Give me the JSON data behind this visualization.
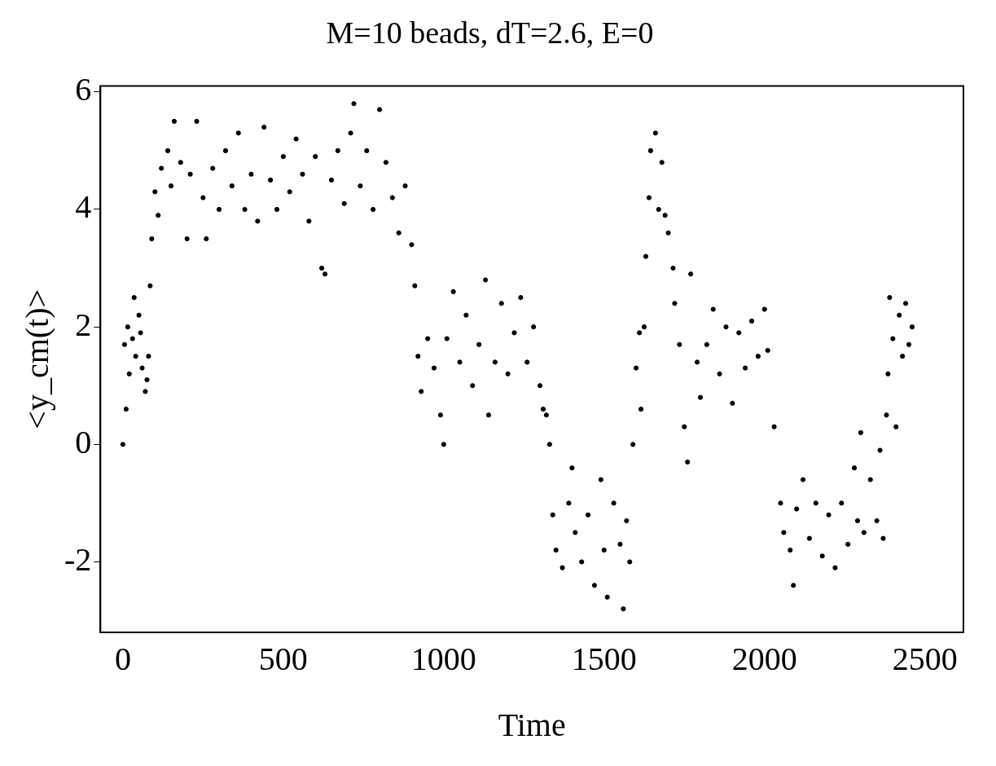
{
  "chart_data": {
    "type": "scatter",
    "title": "M=10 beads, dT=2.6, E=0",
    "xlabel": "Time",
    "ylabel": "<y_cm(t)>",
    "xlim": [
      -70,
      2620
    ],
    "xticks": [
      0,
      500,
      1000,
      1500,
      2000,
      2500
    ],
    "ylim": [
      -3.2,
      6.1
    ],
    "yticks": [
      -2,
      0,
      2,
      4,
      6
    ],
    "grid": false,
    "legend": false,
    "marker": "circle",
    "series": [
      {
        "color": "#000000",
        "x": [
          0,
          5,
          10,
          15,
          20,
          30,
          35,
          40,
          50,
          55,
          60,
          70,
          75,
          80,
          85,
          90,
          100,
          110,
          120,
          140,
          150,
          160,
          180,
          200,
          210,
          230,
          250,
          260,
          280,
          300,
          320,
          340,
          360,
          380,
          400,
          420,
          440,
          460,
          480,
          500,
          520,
          540,
          560,
          580,
          600,
          620,
          630,
          650,
          670,
          690,
          710,
          720,
          740,
          760,
          780,
          800,
          820,
          840,
          860,
          880,
          900,
          910,
          920,
          930,
          950,
          970,
          990,
          1000,
          1010,
          1030,
          1050,
          1070,
          1090,
          1110,
          1130,
          1140,
          1160,
          1180,
          1200,
          1220,
          1240,
          1260,
          1280,
          1300,
          1310,
          1320,
          1330,
          1340,
          1350,
          1370,
          1390,
          1400,
          1410,
          1430,
          1450,
          1470,
          1490,
          1500,
          1510,
          1530,
          1550,
          1560,
          1570,
          1580,
          1590,
          1600,
          1610,
          1615,
          1625,
          1630,
          1640,
          1645,
          1660,
          1670,
          1680,
          1690,
          1700,
          1715,
          1720,
          1735,
          1750,
          1760,
          1770,
          1790,
          1800,
          1820,
          1840,
          1860,
          1880,
          1900,
          1920,
          1940,
          1960,
          1980,
          2000,
          2010,
          2030,
          2050,
          2060,
          2080,
          2090,
          2100,
          2120,
          2140,
          2160,
          2180,
          2200,
          2220,
          2240,
          2260,
          2280,
          2290,
          2300,
          2310,
          2330,
          2350,
          2360,
          2370,
          2380,
          2385,
          2390,
          2400,
          2410,
          2420,
          2430,
          2440,
          2450,
          2460
        ],
        "values": [
          0,
          1.7,
          0.6,
          2.0,
          1.2,
          1.8,
          2.5,
          1.5,
          2.2,
          1.9,
          1.3,
          0.9,
          1.1,
          1.5,
          2.7,
          3.5,
          4.3,
          3.9,
          4.7,
          5.0,
          4.4,
          5.5,
          4.8,
          3.5,
          4.6,
          5.5,
          4.2,
          3.5,
          4.7,
          4.0,
          5.0,
          4.4,
          5.3,
          4.0,
          4.6,
          3.8,
          5.4,
          4.5,
          4.0,
          4.9,
          4.3,
          5.2,
          4.6,
          3.8,
          4.9,
          3.0,
          2.9,
          4.5,
          5.0,
          4.1,
          5.3,
          5.8,
          4.4,
          5.0,
          4.0,
          5.7,
          4.8,
          4.2,
          3.6,
          4.4,
          3.4,
          2.7,
          1.5,
          0.9,
          1.8,
          1.3,
          0.5,
          0.0,
          1.8,
          2.6,
          1.4,
          2.2,
          1.0,
          1.7,
          2.8,
          0.5,
          1.4,
          2.4,
          1.2,
          1.9,
          2.5,
          1.4,
          2.0,
          1.0,
          0.6,
          0.5,
          0.0,
          -1.2,
          -1.8,
          -2.1,
          -1.0,
          -0.4,
          -1.5,
          -2.0,
          -1.2,
          -2.4,
          -0.6,
          -1.8,
          -2.6,
          -1.0,
          -1.7,
          -2.8,
          -1.3,
          -2.0,
          0.0,
          1.3,
          1.9,
          0.6,
          2.0,
          3.2,
          4.2,
          5.0,
          5.3,
          4.0,
          4.8,
          3.9,
          3.6,
          3.0,
          2.4,
          1.7,
          0.3,
          -0.3,
          2.9,
          1.4,
          0.8,
          1.7,
          2.3,
          1.2,
          2.0,
          0.7,
          1.9,
          1.3,
          2.1,
          1.5,
          2.3,
          1.6,
          0.3,
          -1.0,
          -1.5,
          -1.8,
          -2.4,
          -1.1,
          -0.6,
          -1.6,
          -1.0,
          -1.9,
          -1.2,
          -2.1,
          -1.0,
          -1.7,
          -0.4,
          -1.3,
          0.2,
          -1.5,
          -0.6,
          -1.3,
          -0.1,
          -1.6,
          0.5,
          1.2,
          2.5,
          1.8,
          0.3,
          2.2,
          1.5,
          2.4,
          1.7,
          2.0
        ]
      }
    ]
  }
}
